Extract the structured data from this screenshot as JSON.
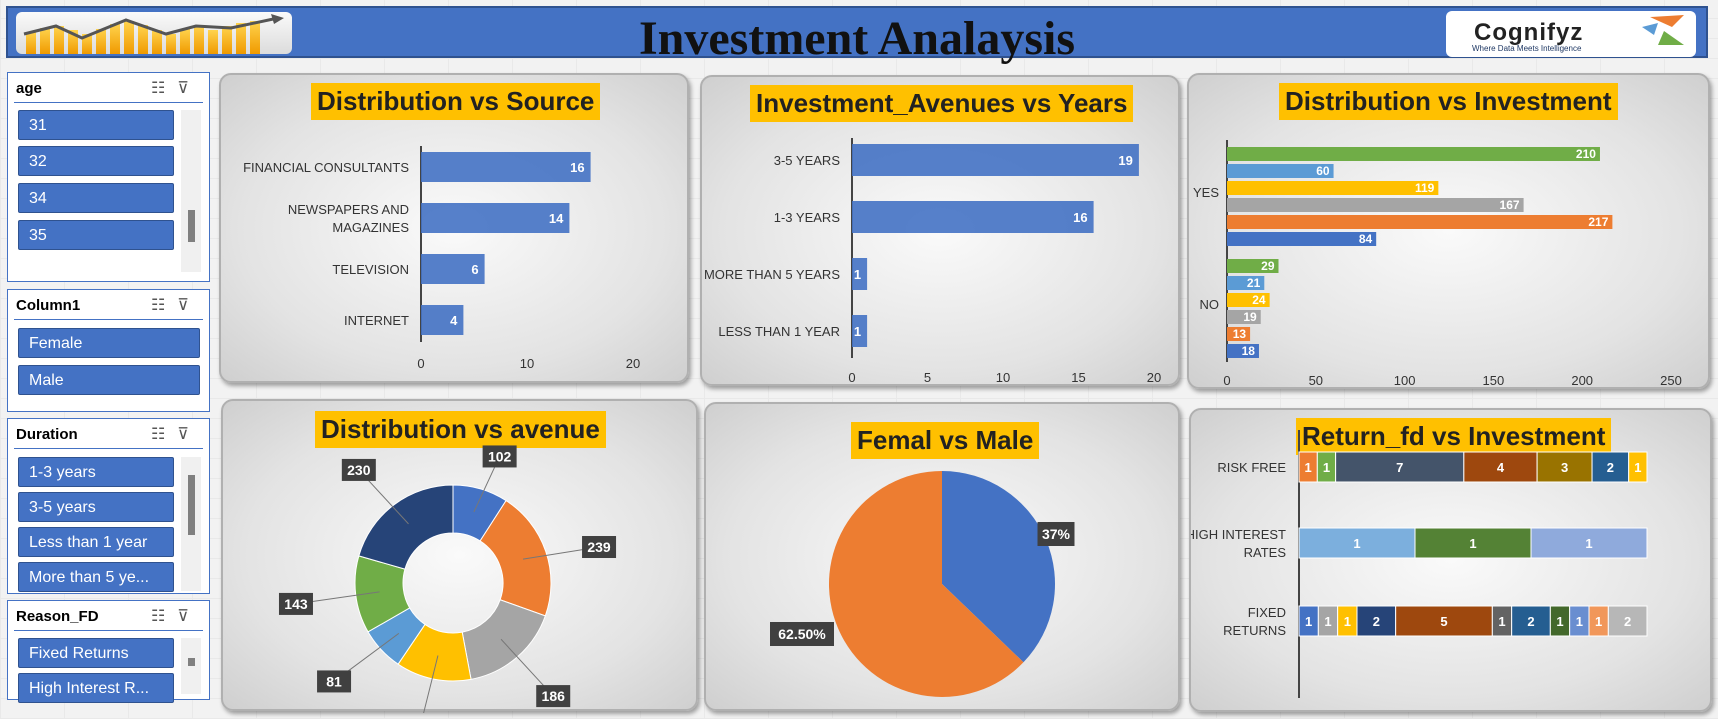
{
  "header": {
    "title": "Investment Analaysis",
    "brand": "Cognifyz",
    "brand_tagline": "Where Data Meets Intelligence"
  },
  "slicers": [
    {
      "title": "age",
      "items": [
        "31",
        "32",
        "34",
        "35"
      ]
    },
    {
      "title": "Column1",
      "items": [
        "Female",
        "Male"
      ]
    },
    {
      "title": "Duration",
      "items": [
        "1-3 years",
        "3-5 years",
        "Less than 1 year",
        "More than 5 ye..."
      ]
    },
    {
      "title": "Reason_FD",
      "items": [
        "Fixed Returns",
        "High Interest R..."
      ]
    }
  ],
  "icons": {
    "multiselect": "multiselect-icon",
    "clear_filter": "clear-filter-icon"
  },
  "colors": {
    "blue": "#4472c4",
    "orange": "#ed7d31",
    "gray": "#a5a5a5",
    "gold": "#ffc000",
    "lightblue": "#5b9bd5",
    "green": "#70ad47",
    "navy": "#264478"
  },
  "chart_data": [
    {
      "type": "bar",
      "title": "Distribution vs  Source",
      "categories": [
        "FINANCIAL CONSULTANTS",
        "NEWSPAPERS AND MAGAZINES",
        "TELEVISION",
        "INTERNET"
      ],
      "values": [
        16,
        14,
        6,
        4
      ],
      "xlim": [
        0,
        20
      ],
      "ticks": [
        "0",
        "10",
        "20"
      ]
    },
    {
      "type": "bar",
      "title": "Investment_Avenues vs Years",
      "categories": [
        "3-5 YEARS",
        "1-3 YEARS",
        "MORE THAN 5 YEARS",
        "LESS THAN 1 YEAR"
      ],
      "values": [
        19,
        16,
        1,
        1
      ],
      "xlim": [
        0,
        20
      ],
      "ticks": [
        "0",
        "5",
        "10",
        "15",
        "20"
      ]
    },
    {
      "type": "bar",
      "title": "Distribution vs Investment",
      "categories": [
        "YES",
        "NO"
      ],
      "series_values": {
        "YES": [
          210,
          60,
          119,
          167,
          217,
          84
        ],
        "NO": [
          29,
          21,
          24,
          19,
          13,
          18
        ]
      },
      "xlim": [
        0,
        250
      ],
      "ticks": [
        "0",
        "50",
        "100",
        "150",
        "200",
        "250"
      ]
    },
    {
      "type": "pie",
      "title": "Distribution vs avenue",
      "donut": true,
      "values": [
        102,
        239,
        186,
        139,
        81,
        143,
        230
      ]
    },
    {
      "type": "pie",
      "title": "Femal vs Male",
      "labels": [
        "37%",
        "62.50%"
      ],
      "values": [
        37,
        62.5
      ]
    },
    {
      "type": "bar",
      "title": "Return_fd vs Investment",
      "stacked": true,
      "categories": [
        "RISK FREE",
        "HIGH INTEREST RATES",
        "FIXED RETURNS"
      ],
      "rows": [
        [
          1,
          1,
          7,
          4,
          3,
          2,
          1
        ],
        [
          1,
          1,
          1
        ],
        [
          1,
          1,
          1,
          2,
          5,
          1,
          2,
          1,
          1,
          1,
          2
        ]
      ]
    }
  ]
}
